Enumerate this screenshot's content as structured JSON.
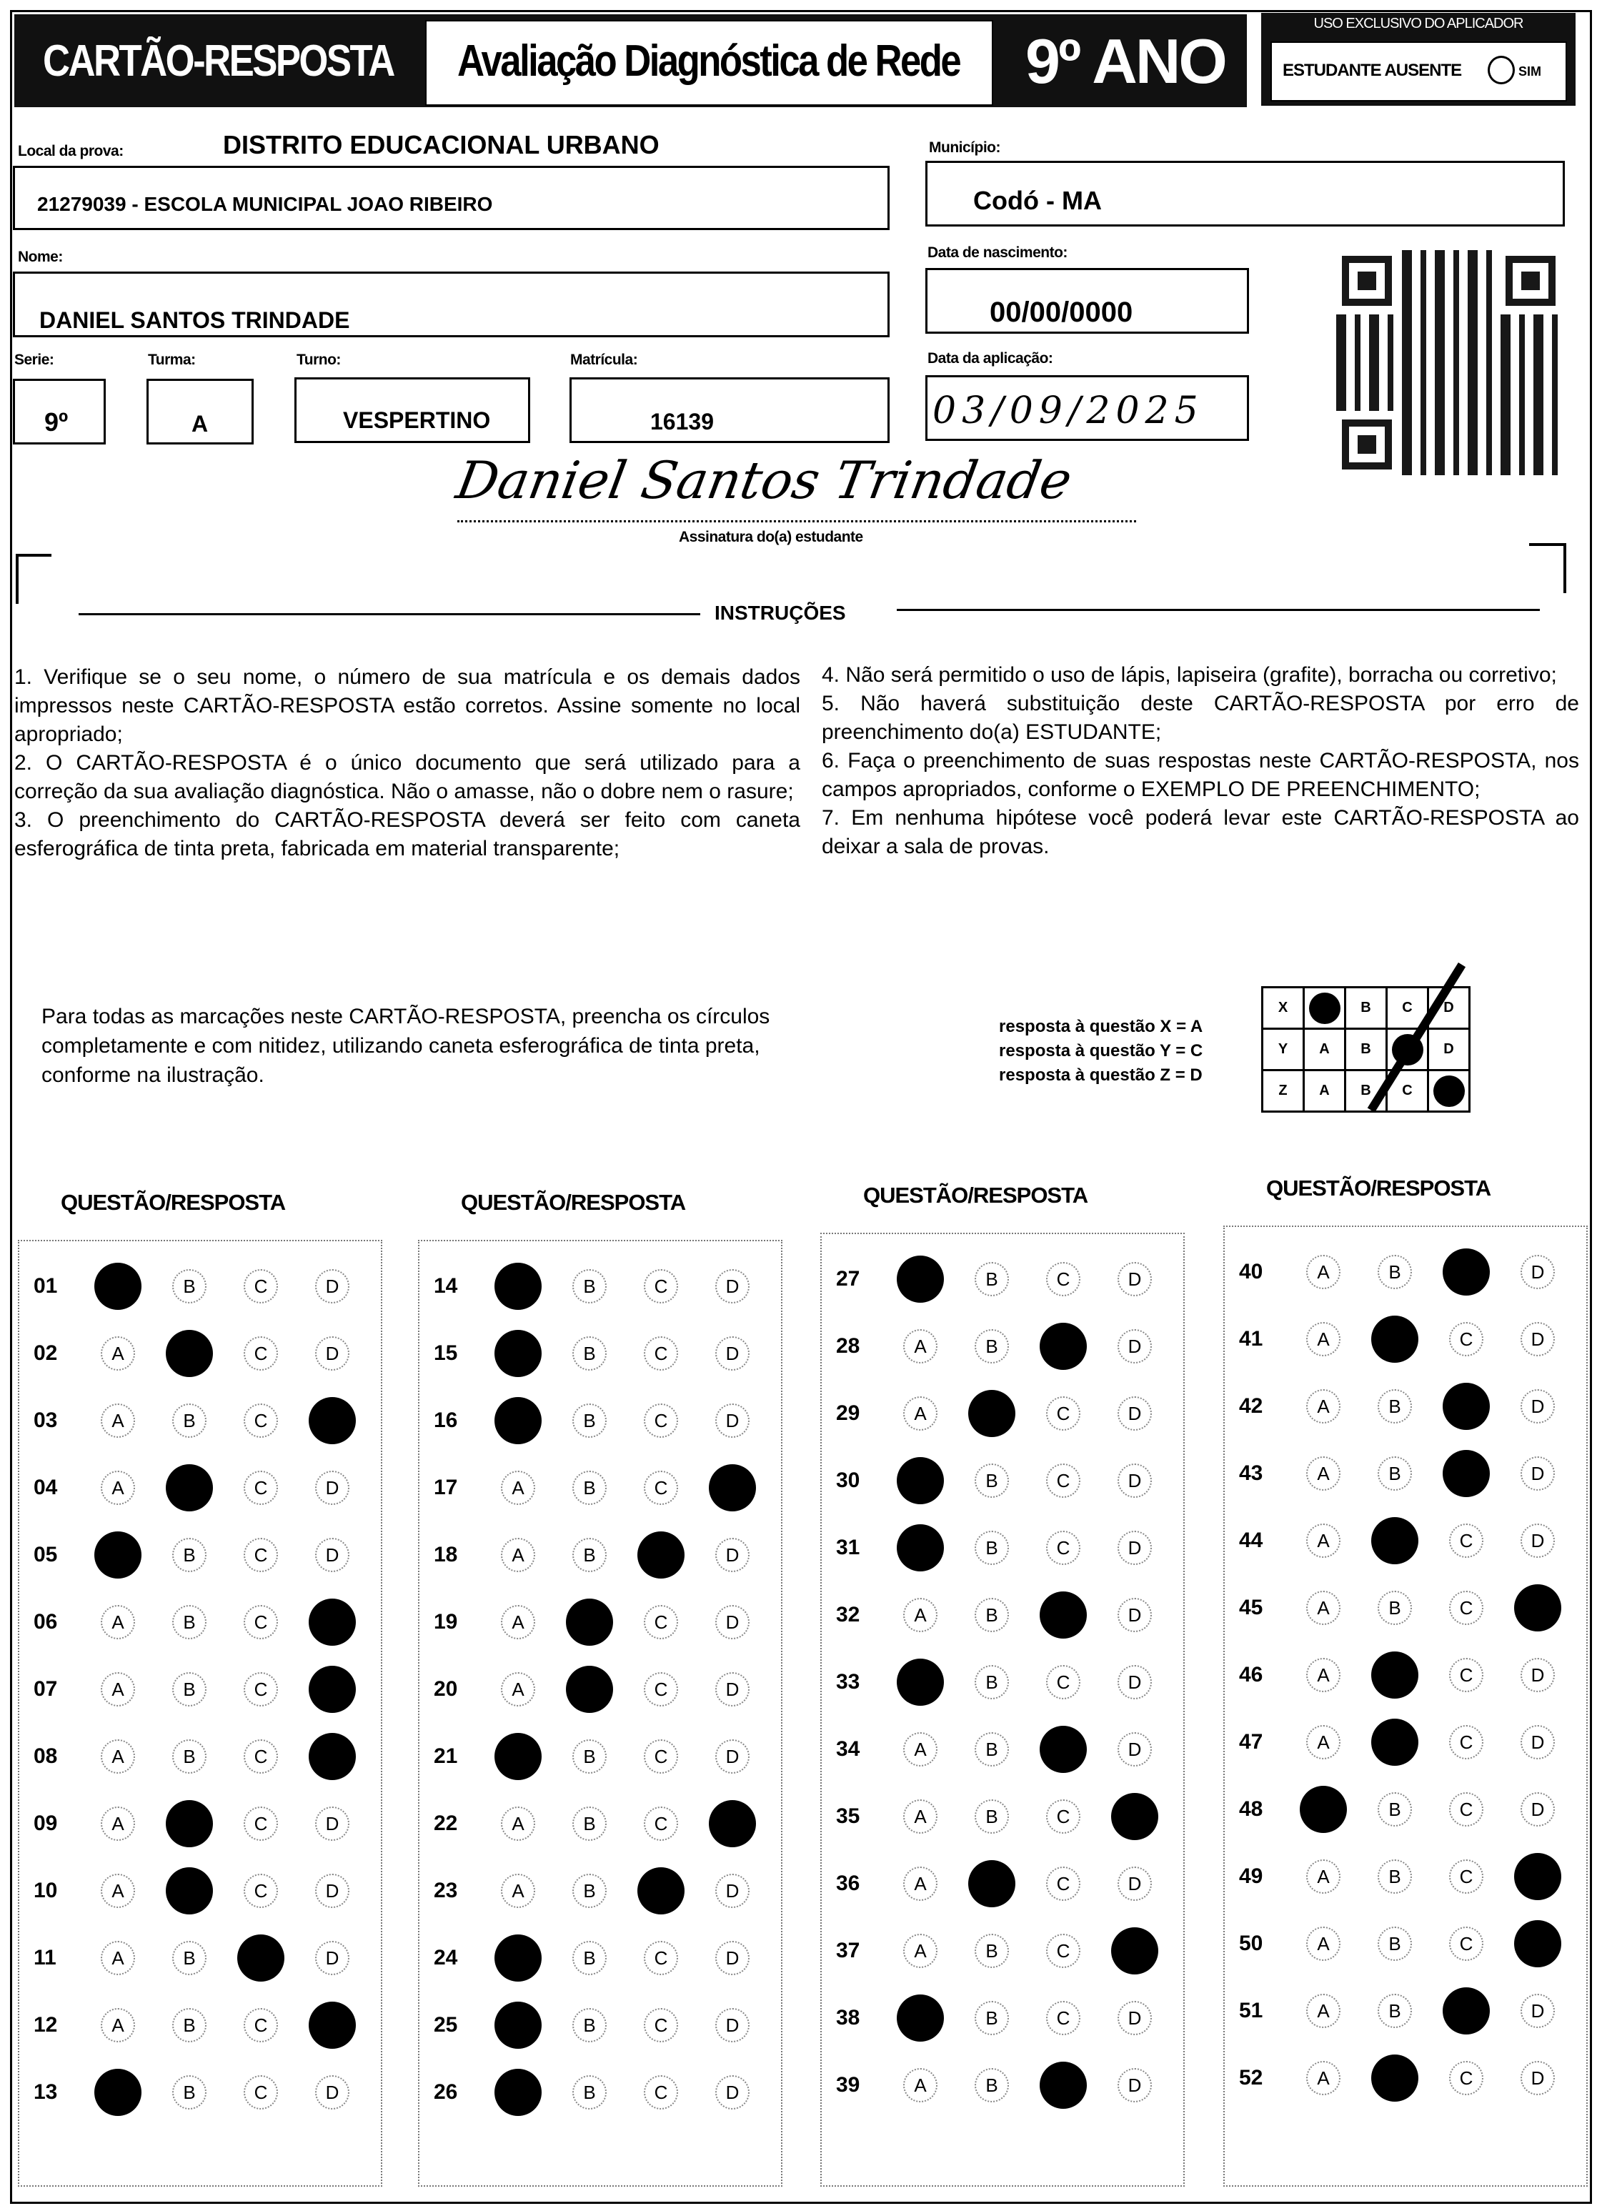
{
  "header": {
    "title": "CARTÃO-RESPOSTA",
    "subtitle": "Avaliação Diagnóstica de Rede",
    "grade": "9º ANO",
    "applicator_title": "USO EXCLUSIVO DO APLICADOR",
    "absent_label": "ESTUDANTE AUSENTE",
    "absent_option": "SIM"
  },
  "fields": {
    "local_label": "Local da prova:",
    "local_value": "DISTRITO EDUCACIONAL URBANO",
    "school": "21279039 - ESCOLA MUNICIPAL JOAO RIBEIRO",
    "municipio_label": "Município:",
    "municipio": "Codó - MA",
    "nome_label": "Nome:",
    "nome": "DANIEL SANTOS TRINDADE",
    "nasc_label": "Data de nascimento:",
    "nasc": "00/00/0000",
    "serie_label": "Serie:",
    "serie": "9º",
    "turma_label": "Turma:",
    "turma": "A",
    "turno_label": "Turno:",
    "turno": "VESPERTINO",
    "matricula_label": "Matrícula:",
    "matricula": "16139",
    "aplic_label": "Data da aplicação:",
    "aplic": "03/09/2025",
    "signature": "Daniel Santos Trindade",
    "signature_label": "Assinatura do(a) estudante"
  },
  "instructions": {
    "title": "INSTRUÇÕES",
    "left": [
      "1. Verifique se o seu nome, o número de sua matrícula e os demais dados impressos neste CARTÃO-RESPOSTA estão corretos. Assine somente no local apropriado;",
      "2. O CARTÃO-RESPOSTA é o único documento que será utilizado para a correção da sua avaliação diagnóstica. Não o amasse, não o dobre nem o rasure;",
      "3. O preenchimento do CARTÃO-RESPOSTA deverá ser feito com caneta esferográfica de tinta preta, fabricada em material transparente;"
    ],
    "right": [
      "4. Não será permitido o uso de lápis, lapiseira (grafite), borracha ou corretivo;",
      "5. Não haverá substituição deste CARTÃO-RESPOSTA por erro de preenchimento do(a) ESTUDANTE;",
      "6. Faça o preenchimento de suas respostas neste CARTÃO-RESPOSTA, nos campos apropriados, conforme o EXEMPLO DE PREENCHIMENTO;",
      "7. Em nenhuma hipótese você poderá levar este CARTÃO-RESPOSTA ao deixar a sala de provas."
    ]
  },
  "example": {
    "text": "Para todas as marcações neste CARTÃO-RESPOSTA, preencha os círculos completamente e com nitidez, utilizando caneta esferográfica de tinta preta, conforme na ilustração.",
    "lines": [
      "resposta à questão X = A",
      "resposta à questão Y = C",
      "resposta à questão Z = D"
    ],
    "rows": [
      {
        "q": "X",
        "answer": "A"
      },
      {
        "q": "Y",
        "answer": "C"
      },
      {
        "q": "Z",
        "answer": "D"
      }
    ]
  },
  "answers": {
    "column_title": "QUESTÃO/RESPOSTA",
    "options": [
      "A",
      "B",
      "C",
      "D"
    ],
    "columns": [
      [
        [
          "01",
          "A"
        ],
        [
          "02",
          "B"
        ],
        [
          "03",
          "D"
        ],
        [
          "04",
          "B"
        ],
        [
          "05",
          "A"
        ],
        [
          "06",
          "D"
        ],
        [
          "07",
          "D"
        ],
        [
          "08",
          "D"
        ],
        [
          "09",
          "B"
        ],
        [
          "10",
          "B"
        ],
        [
          "11",
          "C"
        ],
        [
          "12",
          "D"
        ],
        [
          "13",
          "A"
        ]
      ],
      [
        [
          "14",
          "A"
        ],
        [
          "15",
          "A"
        ],
        [
          "16",
          "A"
        ],
        [
          "17",
          "D"
        ],
        [
          "18",
          "C"
        ],
        [
          "19",
          "B"
        ],
        [
          "20",
          "B"
        ],
        [
          "21",
          "A"
        ],
        [
          "22",
          "D"
        ],
        [
          "23",
          "C"
        ],
        [
          "24",
          "A"
        ],
        [
          "25",
          "A"
        ],
        [
          "26",
          "A"
        ]
      ],
      [
        [
          "27",
          "A"
        ],
        [
          "28",
          "C"
        ],
        [
          "29",
          "B"
        ],
        [
          "30",
          "A"
        ],
        [
          "31",
          "A"
        ],
        [
          "32",
          "C"
        ],
        [
          "33",
          "A"
        ],
        [
          "34",
          "C"
        ],
        [
          "35",
          "D"
        ],
        [
          "36",
          "B"
        ],
        [
          "37",
          "D"
        ],
        [
          "38",
          "A"
        ],
        [
          "39",
          "C"
        ]
      ],
      [
        [
          "40",
          "C"
        ],
        [
          "41",
          "B"
        ],
        [
          "42",
          "C"
        ],
        [
          "43",
          "C"
        ],
        [
          "44",
          "B"
        ],
        [
          "45",
          "D"
        ],
        [
          "46",
          "B"
        ],
        [
          "47",
          "B"
        ],
        [
          "48",
          "A"
        ],
        [
          "49",
          "D"
        ],
        [
          "50",
          "D"
        ],
        [
          "51",
          "C"
        ],
        [
          "52",
          "B"
        ]
      ]
    ]
  }
}
